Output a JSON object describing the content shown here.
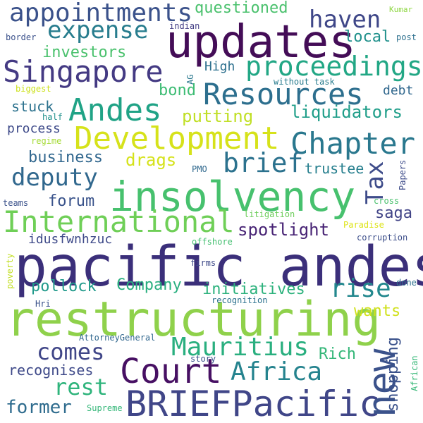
{
  "words": [
    {
      "text": "pacific andes",
      "color": "#3b2f7a"
    },
    {
      "text": "restructuring",
      "color": "#8fd14b"
    },
    {
      "text": "insolvency",
      "color": "#47c16e"
    },
    {
      "text": "updates",
      "color": "#440d57"
    },
    {
      "text": "Court",
      "color": "#471063"
    },
    {
      "text": "BRIEFPacific",
      "color": "#404688"
    },
    {
      "text": "Development",
      "color": "#d6e21a"
    },
    {
      "text": "International",
      "color": "#6fcf57"
    },
    {
      "text": "Resources",
      "color": "#2d6f8e"
    },
    {
      "text": "Andes",
      "color": "#20a386"
    },
    {
      "text": "Singapore",
      "color": "#443a83"
    },
    {
      "text": "Chapter",
      "color": "#2a788e"
    },
    {
      "text": "appointments",
      "color": "#3b528b"
    },
    {
      "text": "proceedings",
      "color": "#22a785"
    },
    {
      "text": "expense",
      "color": "#287d8e"
    },
    {
      "text": "haven",
      "color": "#3f4788"
    },
    {
      "text": "deputy",
      "color": "#31688e"
    },
    {
      "text": "brief",
      "color": "#2c728e"
    },
    {
      "text": "new",
      "color": "#3b528b"
    },
    {
      "text": "Africa",
      "color": "#25838e"
    },
    {
      "text": "Mauritius",
      "color": "#29af7f"
    },
    {
      "text": "comes",
      "color": "#404688"
    },
    {
      "text": "rest",
      "color": "#2fb47c"
    },
    {
      "text": "rise",
      "color": "#23888e"
    },
    {
      "text": "Tax",
      "color": "#3e4c8a"
    },
    {
      "text": "former",
      "color": "#2f6c8e"
    },
    {
      "text": "spotlight",
      "color": "#482475"
    },
    {
      "text": "liquidators",
      "color": "#1f9e89"
    },
    {
      "text": "putting",
      "color": "#c0df25"
    },
    {
      "text": "business",
      "color": "#31678e"
    },
    {
      "text": "drags",
      "color": "#d5e21a"
    },
    {
      "text": "forum",
      "color": "#3a538b"
    },
    {
      "text": "trustee",
      "color": "#277f8e"
    },
    {
      "text": "Company",
      "color": "#29af7f"
    },
    {
      "text": "initiatives",
      "color": "#2db27d"
    },
    {
      "text": "pollock",
      "color": "#1f998a"
    },
    {
      "text": "wants",
      "color": "#d0e11c"
    },
    {
      "text": "shopping",
      "color": "#3b528b"
    },
    {
      "text": "Rich",
      "color": "#35b779"
    },
    {
      "text": "saga",
      "color": "#414487"
    },
    {
      "text": "recognises",
      "color": "#3e4989"
    },
    {
      "text": "questioned",
      "color": "#4ac16d"
    },
    {
      "text": "investors",
      "color": "#4ac16d"
    },
    {
      "text": "local",
      "color": "#21918c"
    },
    {
      "text": "bond",
      "color": "#3dbc74"
    },
    {
      "text": "stuck",
      "color": "#2c728e"
    },
    {
      "text": "High",
      "color": "#2d708e"
    },
    {
      "text": "process",
      "color": "#3e4a89"
    },
    {
      "text": "debt",
      "color": "#31688e"
    },
    {
      "text": "idusfwnhzuc",
      "color": "#3e4a89"
    },
    {
      "text": "Kumar",
      "color": "#8fd744"
    },
    {
      "text": "indian",
      "color": "#433e85"
    },
    {
      "text": "border",
      "color": "#3b518b"
    },
    {
      "text": "post",
      "color": "#2d708e"
    },
    {
      "text": "AG",
      "color": "#2a788e"
    },
    {
      "text": "biggest",
      "color": "#cde11d"
    },
    {
      "text": "without task",
      "color": "#287c8e"
    },
    {
      "text": "half",
      "color": "#21918c"
    },
    {
      "text": "regime",
      "color": "#a5db36"
    },
    {
      "text": "PMO",
      "color": "#30698e"
    },
    {
      "text": "Papers",
      "color": "#3e4c8a"
    },
    {
      "text": "teams",
      "color": "#3b528b"
    },
    {
      "text": "litigation",
      "color": "#6ccd5a"
    },
    {
      "text": "cross",
      "color": "#4ac16d"
    },
    {
      "text": "Paradise",
      "color": "#dde318"
    },
    {
      "text": "offshore",
      "color": "#44bf70"
    },
    {
      "text": "corruption",
      "color": "#3d4e8a"
    },
    {
      "text": "poverty",
      "color": "#c2df23"
    },
    {
      "text": "firms",
      "color": "#3e4a89"
    },
    {
      "text": "done",
      "color": "#2c718e"
    },
    {
      "text": "Hri",
      "color": "#3b528b"
    },
    {
      "text": "recognition",
      "color": "#2c718e"
    },
    {
      "text": "AttorneyGeneral",
      "color": "#31678e"
    },
    {
      "text": "story",
      "color": "#3b528b"
    },
    {
      "text": "African",
      "color": "#37b878"
    },
    {
      "text": "Supreme",
      "color": "#35b779"
    }
  ]
}
